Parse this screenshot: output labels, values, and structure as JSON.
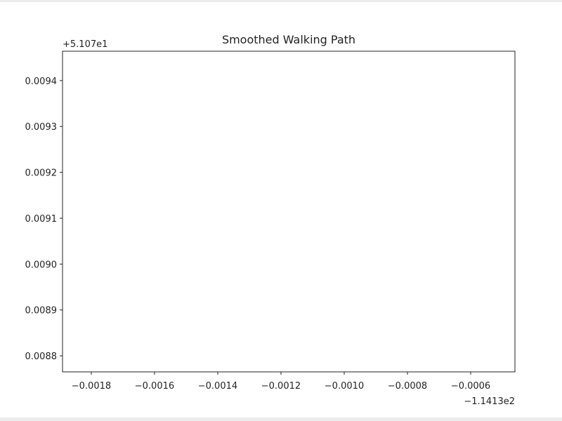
{
  "chart_data": {
    "type": "line",
    "title": "Smoothed Walking Path",
    "xlim": [
      -0.001891,
      -0.00046
    ],
    "ylim": [
      0.008765,
      0.009464
    ],
    "xticks": [
      {
        "value": -0.0018,
        "label": "−0.0018"
      },
      {
        "value": -0.0016,
        "label": "−0.0016"
      },
      {
        "value": -0.0014,
        "label": "−0.0014"
      },
      {
        "value": -0.0012,
        "label": "−0.0012"
      },
      {
        "value": -0.001,
        "label": "−0.0010"
      },
      {
        "value": -0.0008,
        "label": "−0.0008"
      },
      {
        "value": -0.0006,
        "label": "−0.0006"
      }
    ],
    "yticks": [
      {
        "value": 0.0088,
        "label": "0.0088"
      },
      0.0089,
      {
        "value": 0.009,
        "label": "0.0090"
      },
      0.0091,
      0.0092,
      0.0093,
      0.0094
    ],
    "x_offset_label": "−1.1413e2",
    "y_offset_label": "+5.107e1",
    "grid": false
  }
}
